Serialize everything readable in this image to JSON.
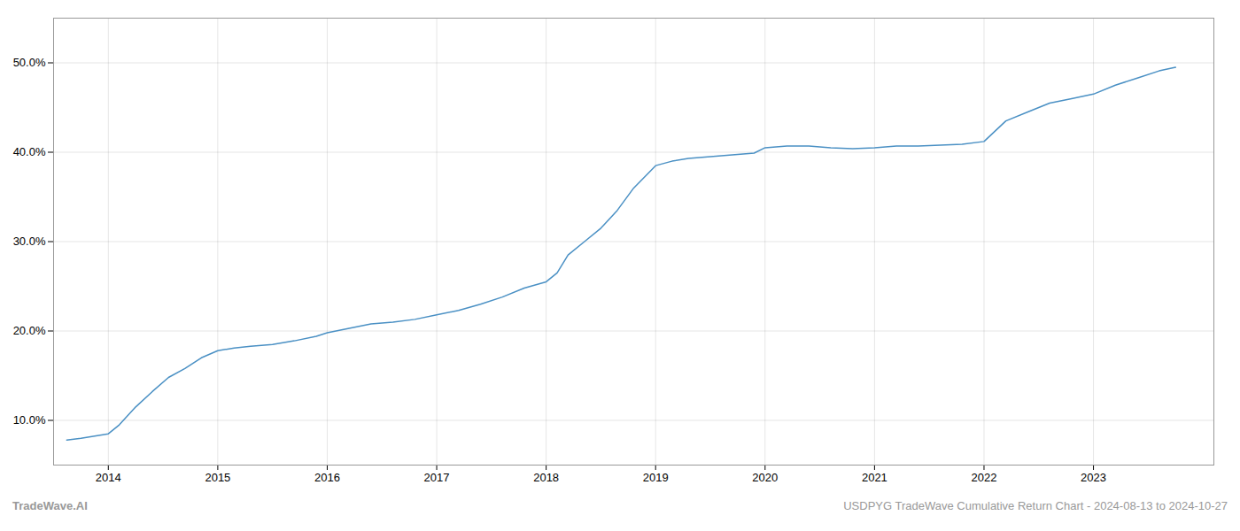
{
  "chart_data": {
    "type": "line",
    "title": "USDPYG TradeWave Cumulative Return Chart - 2024-08-13 to 2024-10-27",
    "annotations": [
      "TradeWave.AI"
    ],
    "x": [
      2013.62,
      2013.75,
      2014.0,
      2014.1,
      2014.25,
      2014.4,
      2014.55,
      2014.7,
      2014.85,
      2015.0,
      2015.15,
      2015.3,
      2015.5,
      2015.7,
      2015.9,
      2016.0,
      2016.2,
      2016.4,
      2016.6,
      2016.8,
      2017.0,
      2017.2,
      2017.4,
      2017.6,
      2017.8,
      2018.0,
      2018.1,
      2018.2,
      2018.35,
      2018.5,
      2018.65,
      2018.8,
      2019.0,
      2019.15,
      2019.3,
      2019.5,
      2019.7,
      2019.9,
      2020.0,
      2020.2,
      2020.4,
      2020.6,
      2020.8,
      2021.0,
      2021.2,
      2021.4,
      2021.6,
      2021.8,
      2022.0,
      2022.2,
      2022.4,
      2022.6,
      2022.8,
      2023.0,
      2023.2,
      2023.4,
      2023.6,
      2023.75
    ],
    "values": [
      7.8,
      8.0,
      8.5,
      9.5,
      11.5,
      13.2,
      14.8,
      15.8,
      17.0,
      17.8,
      18.1,
      18.3,
      18.5,
      18.9,
      19.4,
      19.8,
      20.3,
      20.8,
      21.0,
      21.3,
      21.8,
      22.3,
      23.0,
      23.8,
      24.8,
      25.5,
      26.5,
      28.5,
      30.0,
      31.5,
      33.5,
      36.0,
      38.5,
      39.0,
      39.3,
      39.5,
      39.7,
      39.9,
      40.5,
      40.7,
      40.7,
      40.5,
      40.4,
      40.5,
      40.7,
      40.7,
      40.8,
      40.9,
      41.2,
      43.5,
      44.5,
      45.5,
      46.0,
      46.5,
      47.5,
      48.3,
      49.1,
      49.5
    ],
    "color": "#4a90c4",
    "xlim": [
      2013.5,
      2024.1
    ],
    "xticks": [
      2014,
      2015,
      2016,
      2017,
      2018,
      2019,
      2020,
      2021,
      2022,
      2023
    ],
    "ylim": [
      5.0,
      55.0
    ],
    "yticks": [
      {
        "value": 10.0,
        "label": "10.0%"
      },
      {
        "value": 20.0,
        "label": "20.0%"
      },
      {
        "value": 30.0,
        "label": "30.0%"
      },
      {
        "value": 40.0,
        "label": "40.0%"
      },
      {
        "value": 50.0,
        "label": "50.0%"
      }
    ],
    "grid": true
  }
}
